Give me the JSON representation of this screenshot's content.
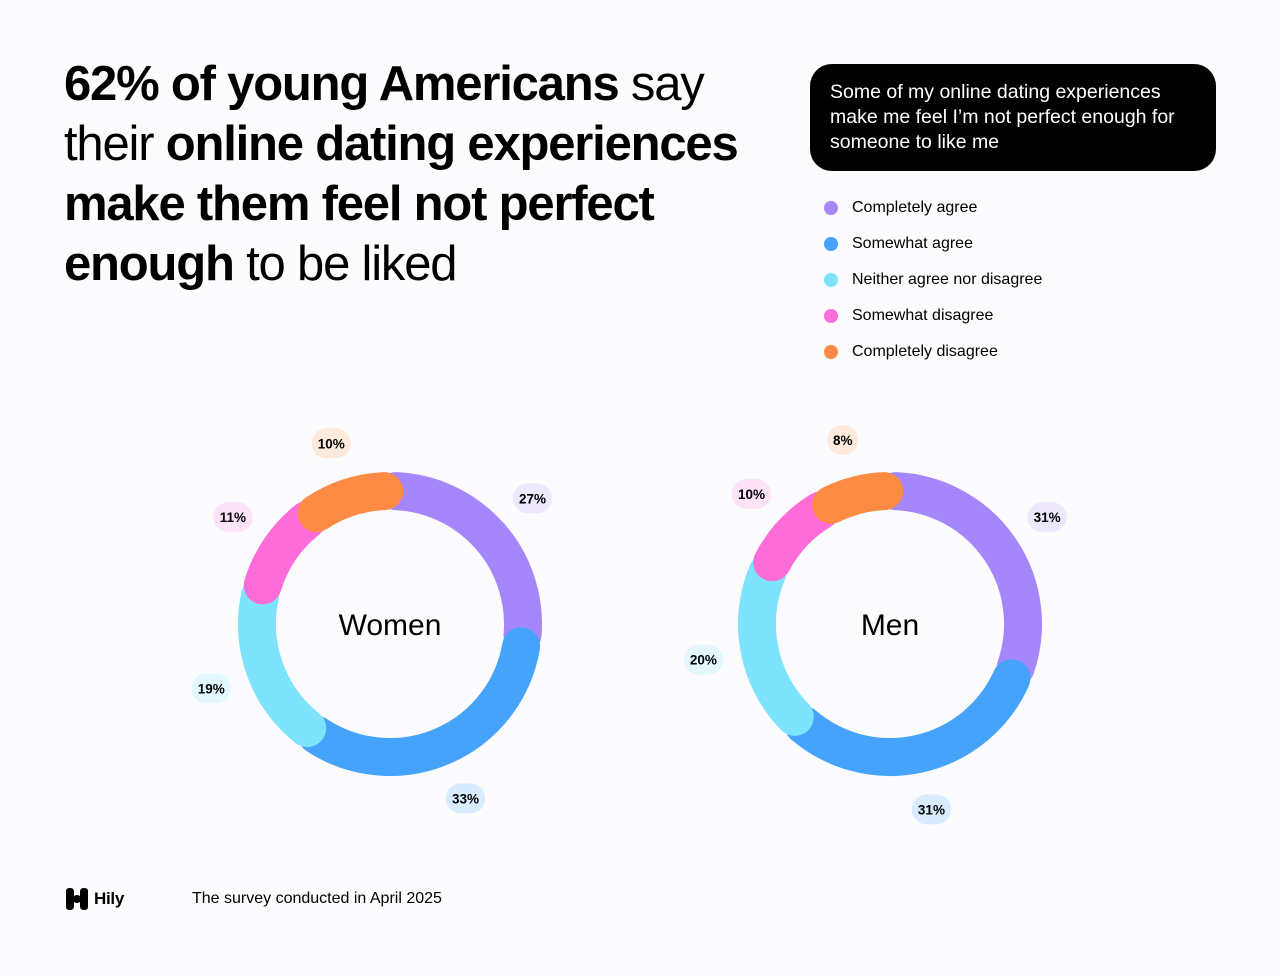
{
  "headline": {
    "part1_bold": "62% of young Americans",
    "part2": " say their ",
    "part3_bold": "online dating experiences make them feel not perfect enough",
    "part4": " to be liked"
  },
  "question": "Some of my online dating experiences make me feel I’m not perfect enough for someone to like me",
  "legend": [
    {
      "label": "Completely agree",
      "color": "#a586fb"
    },
    {
      "label": "Somewhat agree",
      "color": "#45a3fb"
    },
    {
      "label": "Neither agree nor disagree",
      "color": "#7ee3fd"
    },
    {
      "label": "Somewhat disagree",
      "color": "#fd6cd8"
    },
    {
      "label": "Completely disagree",
      "color": "#fd8b43"
    }
  ],
  "chart_data": [
    {
      "type": "pie",
      "title": "Women",
      "categories": [
        "Completely agree",
        "Somewhat agree",
        "Neither agree nor disagree",
        "Somewhat disagree",
        "Completely disagree"
      ],
      "values": [
        27,
        33,
        19,
        11,
        10
      ],
      "labels": [
        "27%",
        "33%",
        "19%",
        "11%",
        "10%"
      ],
      "colors": [
        "#a586fb",
        "#45a3fb",
        "#7ee3fd",
        "#fd6cd8",
        "#fd8b43"
      ],
      "label_bg": [
        "#ede8fe",
        "#d9ebfe",
        "#e2f7fe",
        "#fde3f7",
        "#feeadc"
      ]
    },
    {
      "type": "pie",
      "title": "Men",
      "categories": [
        "Completely agree",
        "Somewhat agree",
        "Neither agree nor disagree",
        "Somewhat disagree",
        "Completely disagree"
      ],
      "values": [
        31,
        31,
        20,
        10,
        8
      ],
      "labels": [
        "31%",
        "31%",
        "20%",
        "10%",
        "8%"
      ],
      "colors": [
        "#a586fb",
        "#45a3fb",
        "#7ee3fd",
        "#fd6cd8",
        "#fd8b43"
      ],
      "label_bg": [
        "#ede8fe",
        "#d9ebfe",
        "#e2f7fe",
        "#fde3f7",
        "#feeadc"
      ]
    }
  ],
  "footer": {
    "brand": "Hily",
    "note": "The survey conducted in April 2025"
  }
}
